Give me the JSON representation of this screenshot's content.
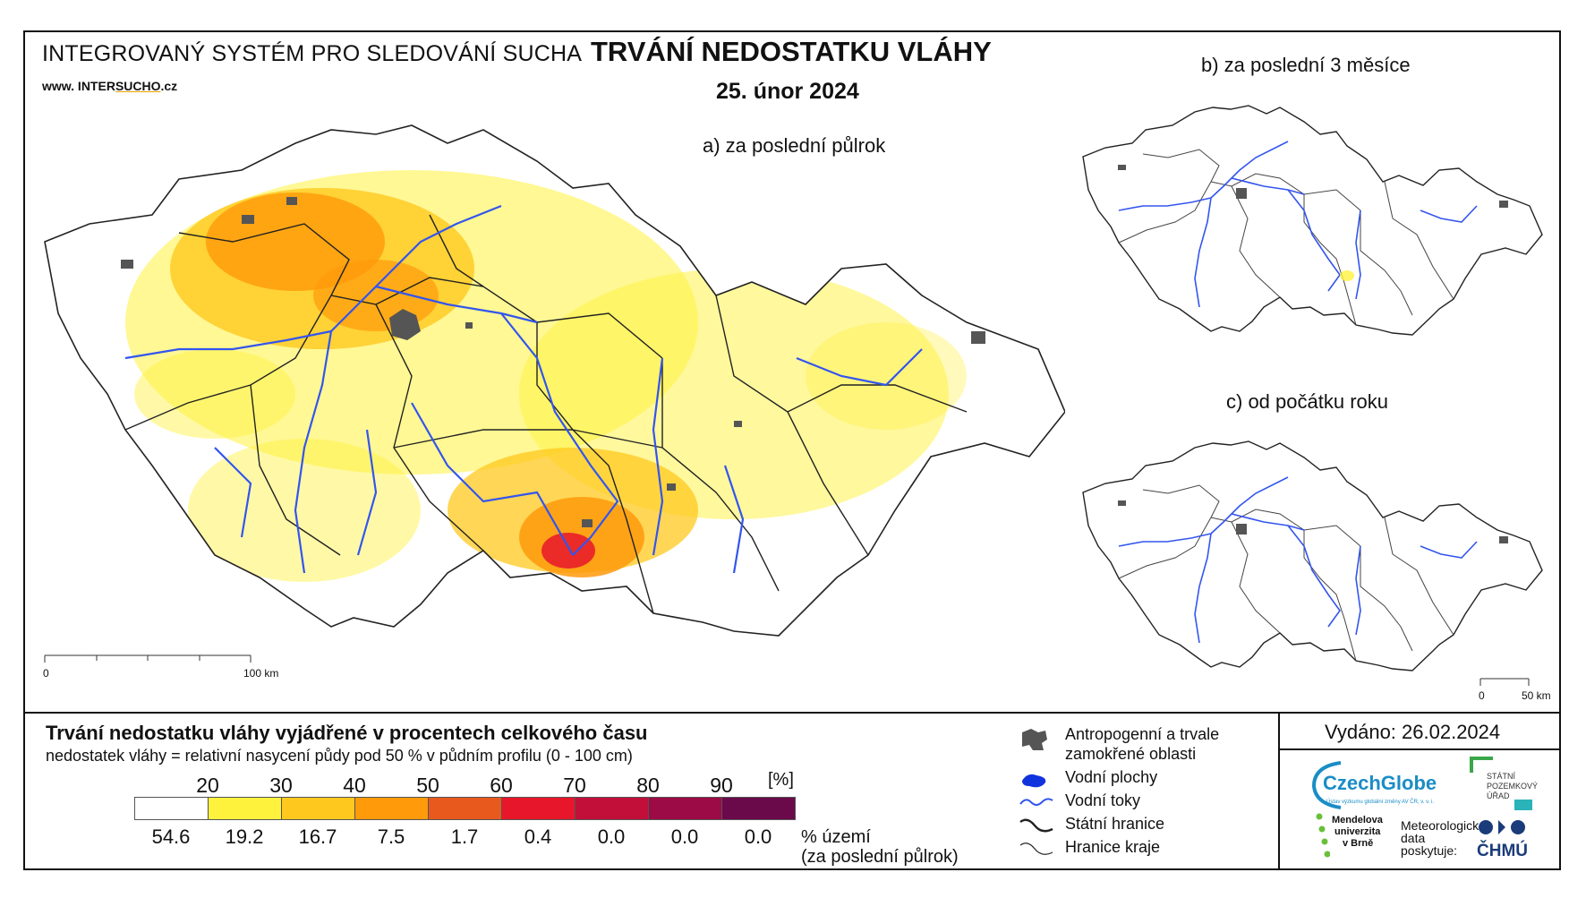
{
  "header": {
    "system_title": "INTEGROVANÝ SYSTÉM PRO SLEDOVÁNÍ SUCHA",
    "site_prefix": "www. INTER",
    "site_mid": "SUCHO",
    "site_suffix": ".cz",
    "main_title": "TRVÁNÍ NEDOSTATKU VLÁHY",
    "date": "25. únor 2024"
  },
  "maps": {
    "a_label": "a) za poslední půlrok",
    "b_label": "b) za poslední 3 měsíce",
    "c_label": "c) od počátku roku",
    "scale_a": {
      "zero": "0",
      "end": "100 km"
    },
    "scale_c": {
      "zero": "0",
      "end": "50 km"
    }
  },
  "legend": {
    "title": "Trvání nedostatku vláhy vyjádřené v procentech celkového času",
    "subtitle": "nedostatek vláhy = relativní nasycení půdy pod 50 % v půdním profilu (0 - 100 cm)",
    "unit": "[%]",
    "ticks": [
      "20",
      "30",
      "40",
      "50",
      "60",
      "70",
      "80",
      "90"
    ],
    "classes": [
      {
        "color": "#ffffff",
        "share": "54.6"
      },
      {
        "color": "#fff23c",
        "share": "19.2"
      },
      {
        "color": "#ffc81e",
        "share": "16.7"
      },
      {
        "color": "#ff9a0a",
        "share": "7.5"
      },
      {
        "color": "#e8591e",
        "share": "1.7"
      },
      {
        "color": "#e8162a",
        "share": "0.4"
      },
      {
        "color": "#c20f3a",
        "share": "0.0"
      },
      {
        "color": "#9c0b45",
        "share": "0.0"
      },
      {
        "color": "#6a0a4a",
        "share": "0.0"
      }
    ],
    "share_label_1": "% území",
    "share_label_2": "(za poslední půlrok)"
  },
  "symbols": {
    "anthropogenic_1": "Antropogenní a trvale",
    "anthropogenic_2": "zamokřené oblasti",
    "water_bodies": "Vodní plochy",
    "water_courses": "Vodní toky",
    "state_border": "Státní hranice",
    "region_border": "Hranice kraje"
  },
  "footer": {
    "issued": "Vydáno: 26.02.2024",
    "czechglobe": "CzechGlobe",
    "czechglobe_small": "Ústav výzkumu globální změny AV ČR, v. v. i.",
    "spu_1": "STÁTNÍ",
    "spu_2": "POZEMKOVÝ",
    "spu_3": "ÚŘAD",
    "mendel_1": "Mendelova",
    "mendel_2": "univerzita",
    "mendel_3": "v Brně",
    "meteo_1": "Meteorologická",
    "meteo_2": "data",
    "meteo_3": "poskytuje:",
    "chmu": "ČHMÚ"
  },
  "colors": {
    "river": "#3355ee",
    "urban": "#555555",
    "border": "#222222"
  }
}
